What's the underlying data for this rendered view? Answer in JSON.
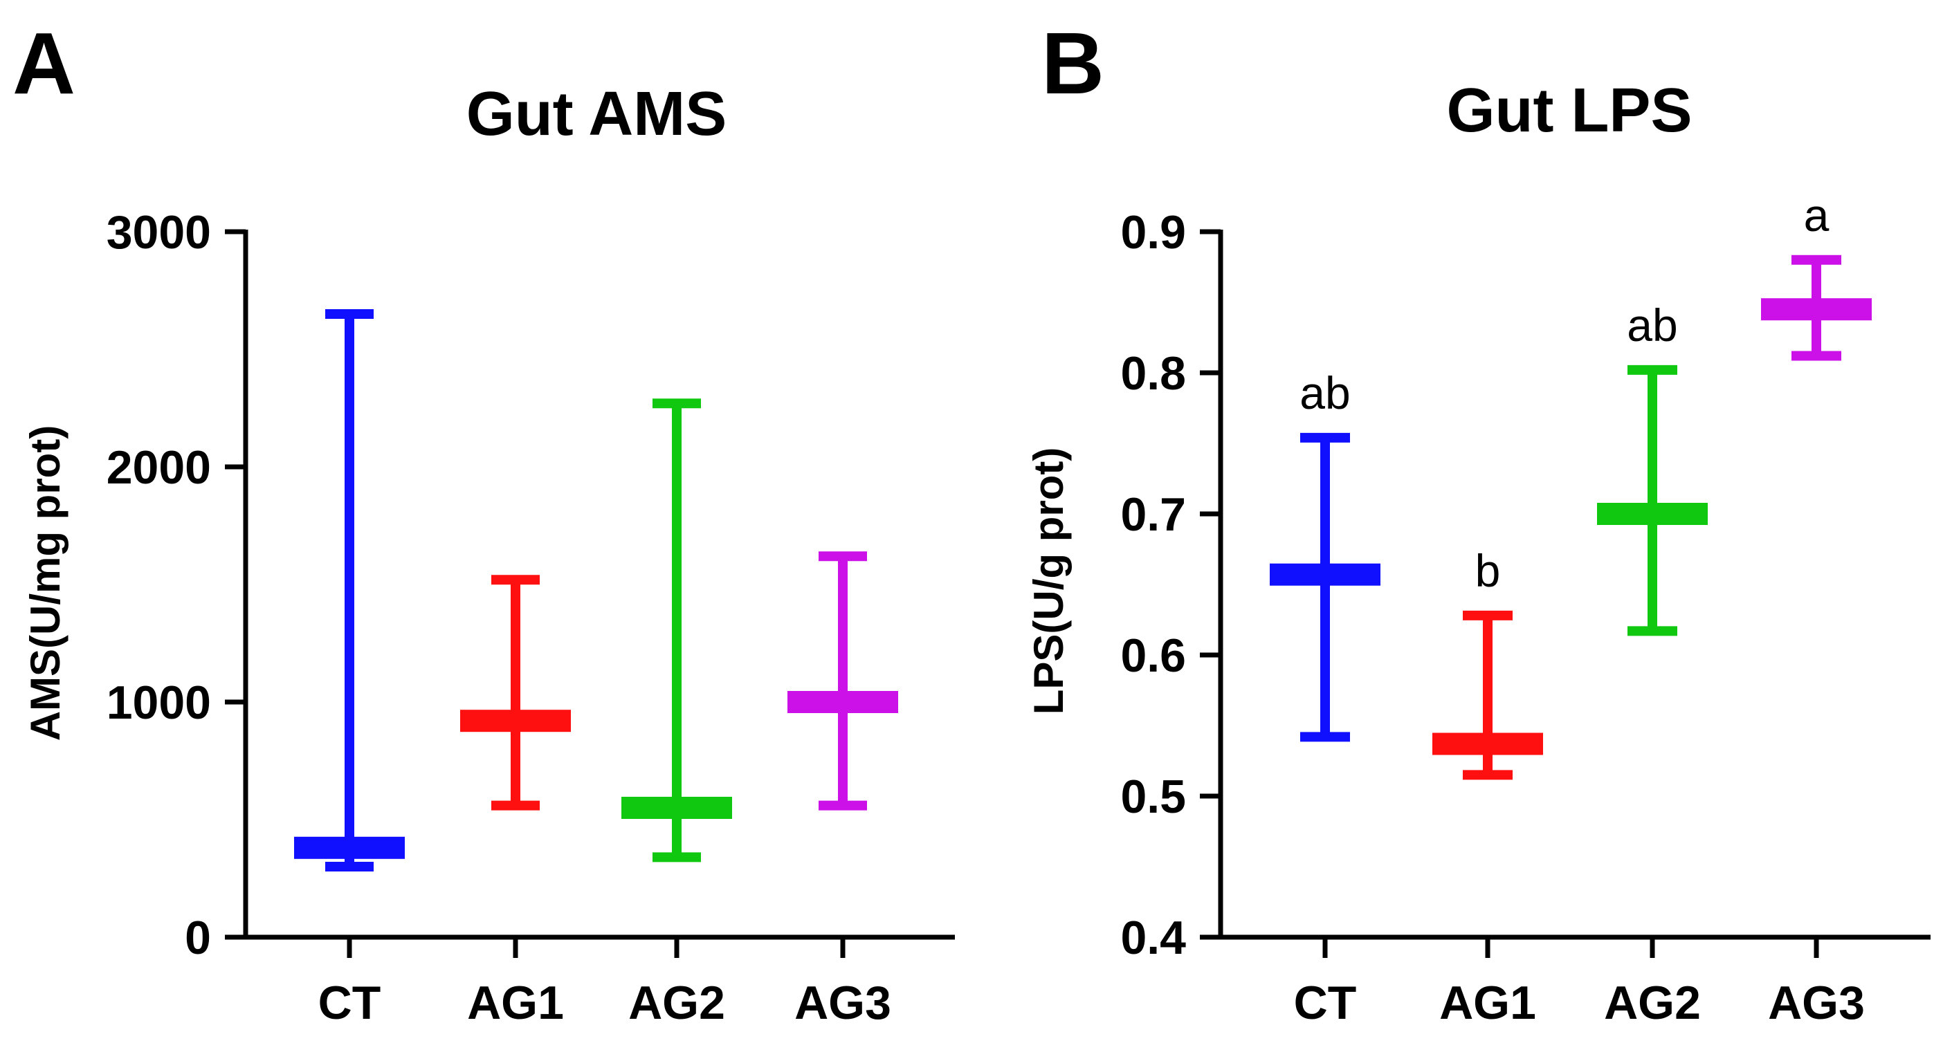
{
  "chart_data": [
    {
      "type": "median_range",
      "panel_label": "A",
      "title": "Gut AMS",
      "ylabel": "AMS(U/mg prot)",
      "xlabel": "",
      "ylim": [
        0,
        3000
      ],
      "yticks": [
        0,
        1000,
        2000,
        3000
      ],
      "ytick_labels": [
        "0",
        "1000",
        "2000",
        "3000"
      ],
      "categories": [
        "CT",
        "AG1",
        "AG2",
        "AG3"
      ],
      "colors": [
        "#1010ff",
        "#ff1010",
        "#10c810",
        "#cc10e8"
      ],
      "series": [
        {
          "name": "CT",
          "center": 380,
          "low": 300,
          "high": 2650
        },
        {
          "name": "AG1",
          "center": 920,
          "low": 560,
          "high": 1520
        },
        {
          "name": "AG2",
          "center": 550,
          "low": 340,
          "high": 2270
        },
        {
          "name": "AG3",
          "center": 1000,
          "low": 560,
          "high": 1620
        }
      ],
      "significance": []
    },
    {
      "type": "median_range",
      "panel_label": "B",
      "title": "Gut LPS",
      "ylabel": "LPS(U/g prot)",
      "xlabel": "",
      "ylim": [
        0.4,
        0.9
      ],
      "yticks": [
        0.4,
        0.5,
        0.6,
        0.7,
        0.8,
        0.9
      ],
      "ytick_labels": [
        "0.4",
        "0.5",
        "0.6",
        "0.7",
        "0.8",
        "0.9"
      ],
      "categories": [
        "CT",
        "AG1",
        "AG2",
        "AG3"
      ],
      "colors": [
        "#1010ff",
        "#ff1010",
        "#10c810",
        "#cc10e8"
      ],
      "series": [
        {
          "name": "CT",
          "center": 0.657,
          "low": 0.542,
          "high": 0.754
        },
        {
          "name": "AG1",
          "center": 0.537,
          "low": 0.515,
          "high": 0.628
        },
        {
          "name": "AG2",
          "center": 0.7,
          "low": 0.617,
          "high": 0.802
        },
        {
          "name": "AG3",
          "center": 0.845,
          "low": 0.812,
          "high": 0.88
        }
      ],
      "significance": [
        "ab",
        "b",
        "ab",
        "a"
      ]
    }
  ]
}
